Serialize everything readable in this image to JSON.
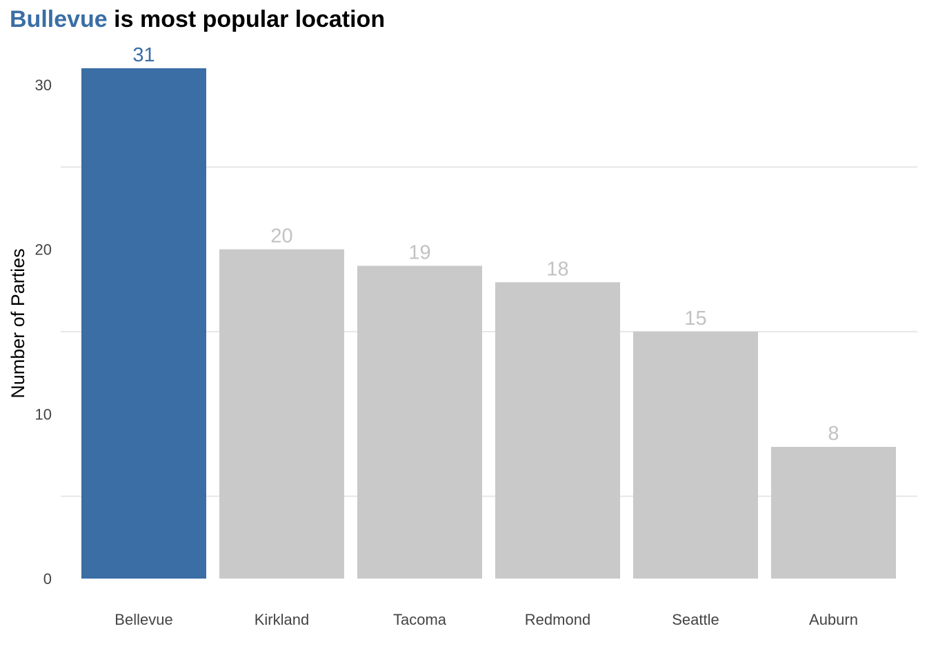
{
  "title": {
    "highlight": "Bullevue",
    "rest": " is most popular location"
  },
  "colors": {
    "highlight": "#3a6ea5",
    "muted": "#c9c9c9",
    "muted_label": "#c2c2c2",
    "grid": "#e6e6e6"
  },
  "chart_data": {
    "type": "bar",
    "title": "Bullevue is most popular location",
    "xlabel": "",
    "ylabel": "Number of Parties",
    "categories": [
      "Bellevue",
      "Kirkland",
      "Tacoma",
      "Redmond",
      "Seattle",
      "Auburn"
    ],
    "values": [
      31,
      20,
      19,
      18,
      15,
      8
    ],
    "highlighted": [
      "Bellevue"
    ],
    "data_labels": [
      "31",
      "20",
      "19",
      "18",
      "15",
      "8"
    ],
    "ylim": [
      0,
      31
    ],
    "yticks": [
      0,
      10,
      20,
      30
    ],
    "ytick_labels": [
      "0",
      "10",
      "20",
      "30"
    ],
    "grid": true,
    "legend": "none"
  }
}
